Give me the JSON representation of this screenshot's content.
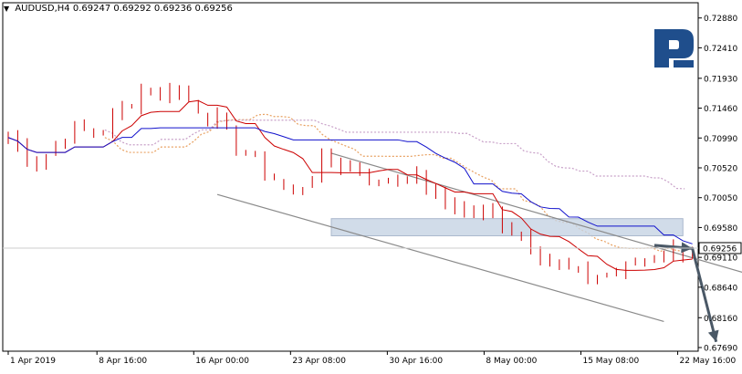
{
  "header": {
    "symbol": "AUDUSD,H4",
    "open": "0.69247",
    "high": "0.69292",
    "low": "0.69236",
    "close": "0.69256"
  },
  "price_tag": "0.69256",
  "colors": {
    "candles": "#cc0000",
    "tenkan": "#cc0000",
    "kijun": "#1111cc",
    "senkou_a": "#e8a060",
    "senkou_b": "#c8a0c8",
    "channel": "#8a8a8a",
    "zone_fill": "#c6d3e3",
    "forecast_arrow": "#4a5866",
    "logo": "#1f4e8c"
  },
  "chart_data": {
    "type": "candlestick",
    "instrument": "AUDUSD",
    "timeframe": "H4",
    "ylim": [
      0.6769,
      0.7289
    ],
    "y_ticks": [
      "0.72880",
      "0.72410",
      "0.71930",
      "0.71460",
      "0.70990",
      "0.70520",
      "0.70050",
      "0.69580",
      "0.69110",
      "0.68640",
      "0.68160",
      "0.67690"
    ],
    "x_ticks": [
      "1 Apr 2019",
      "8 Apr 16:00",
      "16 Apr 00:00",
      "23 Apr 08:00",
      "30 Apr 16:00",
      "8 May 00:00",
      "15 May 08:00",
      "22 May 16:00"
    ],
    "last_price": 0.69256,
    "close_path": [
      [
        0,
        0.71
      ],
      [
        3,
        0.706
      ],
      [
        6,
        0.7105
      ],
      [
        10,
        0.711
      ],
      [
        14,
        0.7175
      ],
      [
        18,
        0.717
      ],
      [
        22,
        0.7125
      ],
      [
        24,
        0.7085
      ],
      [
        27,
        0.705
      ],
      [
        30,
        0.701
      ],
      [
        33,
        0.706
      ],
      [
        36,
        0.7055
      ],
      [
        39,
        0.7025
      ],
      [
        42,
        0.7045
      ],
      [
        45,
        0.7005
      ],
      [
        48,
        0.6985
      ],
      [
        51,
        0.6975
      ],
      [
        54,
        0.695
      ],
      [
        57,
        0.6905
      ],
      [
        60,
        0.688
      ],
      [
        63,
        0.6885
      ],
      [
        66,
        0.69
      ],
      [
        69,
        0.692
      ],
      [
        72,
        0.6925
      ]
    ],
    "indicators": [
      "Ichimoku Kinko Hyo"
    ],
    "annotations": {
      "channel": {
        "upper": [
          [
            34,
            0.7075
          ],
          [
            79,
            0.688
          ]
        ],
        "lower": [
          [
            22,
            0.701
          ],
          [
            69,
            0.681
          ]
        ]
      },
      "zone": {
        "x": [
          34,
          71
        ],
        "y": [
          0.6945,
          0.6972
        ]
      },
      "forecast_path": [
        [
          68,
          0.693
        ],
        [
          72,
          0.6925
        ],
        [
          74.5,
          0.6778
        ]
      ]
    }
  }
}
